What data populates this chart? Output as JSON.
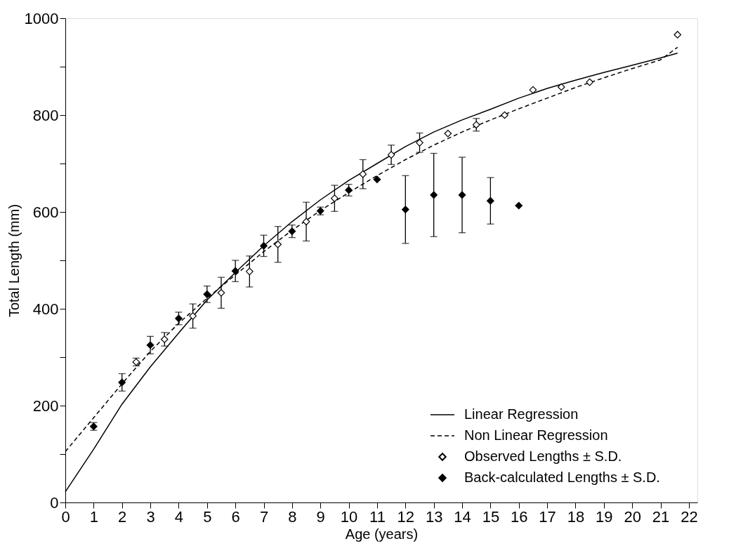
{
  "chart_data": {
    "type": "scatter",
    "xlabel": "Age (years)",
    "ylabel": "Total Length (mm)",
    "xlim": [
      0,
      22.3
    ],
    "ylim": [
      0,
      1000
    ],
    "xticks": [
      0,
      1,
      2,
      3,
      4,
      5,
      6,
      7,
      8,
      9,
      10,
      11,
      12,
      13,
      14,
      15,
      16,
      17,
      18,
      19,
      20,
      21,
      22
    ],
    "yticks": [
      0,
      {
        "value": 100,
        "label": null
      },
      200,
      {
        "value": 300,
        "label": null
      },
      400,
      {
        "value": 500,
        "label": null
      },
      600,
      {
        "value": 700,
        "label": null
      },
      800,
      {
        "value": 900,
        "label": null
      },
      1000
    ],
    "grid": false,
    "legend": "bottom right",
    "series": [
      {
        "name": "Linear Regression",
        "type": "line",
        "line_style": "solid",
        "marker": "none",
        "color": "#000000",
        "x": [
          0,
          1,
          2,
          3,
          4,
          5,
          6,
          7,
          8,
          9,
          10,
          11,
          12,
          13,
          14,
          15,
          16,
          17,
          18,
          19,
          20,
          21,
          21.6
        ],
        "values": [
          22,
          110,
          203,
          280,
          350,
          418,
          475,
          530,
          580,
          625,
          665,
          700,
          735,
          765,
          790,
          812,
          835,
          855,
          872,
          888,
          903,
          918,
          928
        ]
      },
      {
        "name": "Non Linear Regression",
        "type": "line",
        "line_style": "dashed",
        "marker": "none",
        "color": "#000000",
        "x": [
          0,
          1,
          2,
          3,
          4,
          5,
          6,
          7,
          8,
          9,
          10,
          11,
          12,
          13,
          14,
          15,
          16,
          17,
          18,
          19,
          20,
          21,
          21.6
        ],
        "values": [
          105,
          175,
          245,
          312,
          370,
          422,
          470,
          518,
          562,
          603,
          640,
          675,
          708,
          738,
          765,
          790,
          813,
          835,
          857,
          877,
          896,
          914,
          940
        ]
      },
      {
        "name": "Observed Lengths ± S.D.",
        "marker": "diamond",
        "color": "#ffffff",
        "x": [
          2.5,
          3.5,
          4.5,
          5.5,
          6.5,
          7.5,
          8.5,
          9.5,
          10.5,
          11.5,
          12.5,
          13.5,
          14.5,
          15.5,
          16.5,
          17.5,
          18.5,
          21.6
        ],
        "values": [
          290,
          337,
          385,
          433,
          477,
          533,
          580,
          628,
          678,
          718,
          743,
          762,
          780,
          800,
          852,
          858,
          868,
          966
        ],
        "errors": [
          8,
          14,
          25,
          32,
          32,
          37,
          40,
          27,
          30,
          20,
          20,
          null,
          13,
          null,
          null,
          null,
          null,
          null
        ]
      },
      {
        "name": "Back-calculated Lengths ± S.D.",
        "marker": "diamond",
        "color": "#000000",
        "x": [
          1,
          2,
          3,
          4,
          5,
          6,
          7,
          8,
          9,
          10,
          11,
          12,
          13,
          14,
          15,
          16
        ],
        "values": [
          157,
          248,
          325,
          380,
          430,
          478,
          530,
          560,
          602,
          645,
          667,
          605,
          635,
          635,
          623,
          613
        ],
        "errors": [
          8,
          18,
          18,
          13,
          17,
          22,
          22,
          13,
          8,
          12,
          null,
          70,
          86,
          78,
          48,
          null
        ]
      }
    ]
  }
}
